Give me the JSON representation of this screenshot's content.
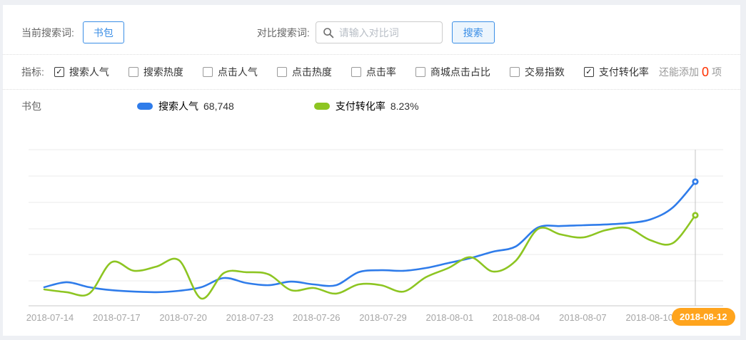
{
  "toolbar": {
    "current_term_label": "当前搜索词:",
    "current_term": "书包",
    "compare_label": "对比搜索词:",
    "compare_placeholder": "请输入对比词",
    "search_button": "搜索"
  },
  "metrics": {
    "label": "指标:",
    "items": [
      {
        "label": "搜索人气",
        "checked": true
      },
      {
        "label": "搜索热度",
        "checked": false
      },
      {
        "label": "点击人气",
        "checked": false
      },
      {
        "label": "点击热度",
        "checked": false
      },
      {
        "label": "点击率",
        "checked": false
      },
      {
        "label": "商城点击占比",
        "checked": false
      },
      {
        "label": "交易指数",
        "checked": false
      },
      {
        "label": "支付转化率",
        "checked": true
      }
    ],
    "remaining_prefix": "还能添加",
    "remaining_count": "0",
    "remaining_suffix": "项"
  },
  "legend": {
    "term": "书包",
    "series": [
      {
        "name": "搜索人气",
        "value": "68,748",
        "color": "#2f7cea"
      },
      {
        "name": "支付转化率",
        "value": "8.23%",
        "color": "#8dc522"
      }
    ]
  },
  "chart_data": {
    "type": "line",
    "title": "",
    "xlabel": "",
    "ylabel": "",
    "grid": true,
    "y_axis_labels_visible": false,
    "x": [
      "2018-07-14",
      "2018-07-15",
      "2018-07-16",
      "2018-07-17",
      "2018-07-18",
      "2018-07-19",
      "2018-07-20",
      "2018-07-21",
      "2018-07-22",
      "2018-07-23",
      "2018-07-24",
      "2018-07-25",
      "2018-07-26",
      "2018-07-27",
      "2018-07-28",
      "2018-07-29",
      "2018-07-30",
      "2018-07-31",
      "2018-08-01",
      "2018-08-02",
      "2018-08-03",
      "2018-08-04",
      "2018-08-05",
      "2018-08-06",
      "2018-08-07",
      "2018-08-08",
      "2018-08-09",
      "2018-08-10",
      "2018-08-11",
      "2018-08-12"
    ],
    "x_tick_labels": [
      "2018-07-14",
      "2018-07-17",
      "2018-07-20",
      "2018-07-23",
      "2018-07-26",
      "2018-07-29",
      "2018-08-01",
      "2018-08-04",
      "2018-08-07",
      "2018-08-10"
    ],
    "highlighted_x_label": "2018-08-12",
    "series": [
      {
        "name": "搜索人气",
        "color": "#2f7cea",
        "last_point_label": "68,748",
        "values_pct_of_plot_height": [
          11.9,
          15.1,
          11.9,
          10.0,
          9.1,
          8.7,
          9.6,
          11.9,
          17.8,
          14.6,
          13.2,
          15.5,
          13.7,
          13.2,
          21.5,
          22.8,
          22.4,
          24.2,
          27.4,
          30.6,
          34.7,
          38.0,
          50.2,
          51.1,
          51.6,
          52.1,
          53.0,
          55.3,
          63.0,
          79.5
        ]
      },
      {
        "name": "支付转化率",
        "color": "#8dc522",
        "last_point_label": "8.23%",
        "values_pct_of_plot_height": [
          10.5,
          8.7,
          7.8,
          27.9,
          22.4,
          25.1,
          29.2,
          4.6,
          21.0,
          21.5,
          20.1,
          10.0,
          11.4,
          7.8,
          13.7,
          13.2,
          9.1,
          18.3,
          24.2,
          31.1,
          21.9,
          28.8,
          49.3,
          45.7,
          43.8,
          48.4,
          49.8,
          42.0,
          40.2,
          58.0
        ]
      }
    ],
    "colors": {
      "marker_line": "#c4c4c4",
      "gridline": "#ebebeb",
      "axis_line": "#c8c8c8",
      "highlight_badge": "#ffa41d"
    }
  }
}
